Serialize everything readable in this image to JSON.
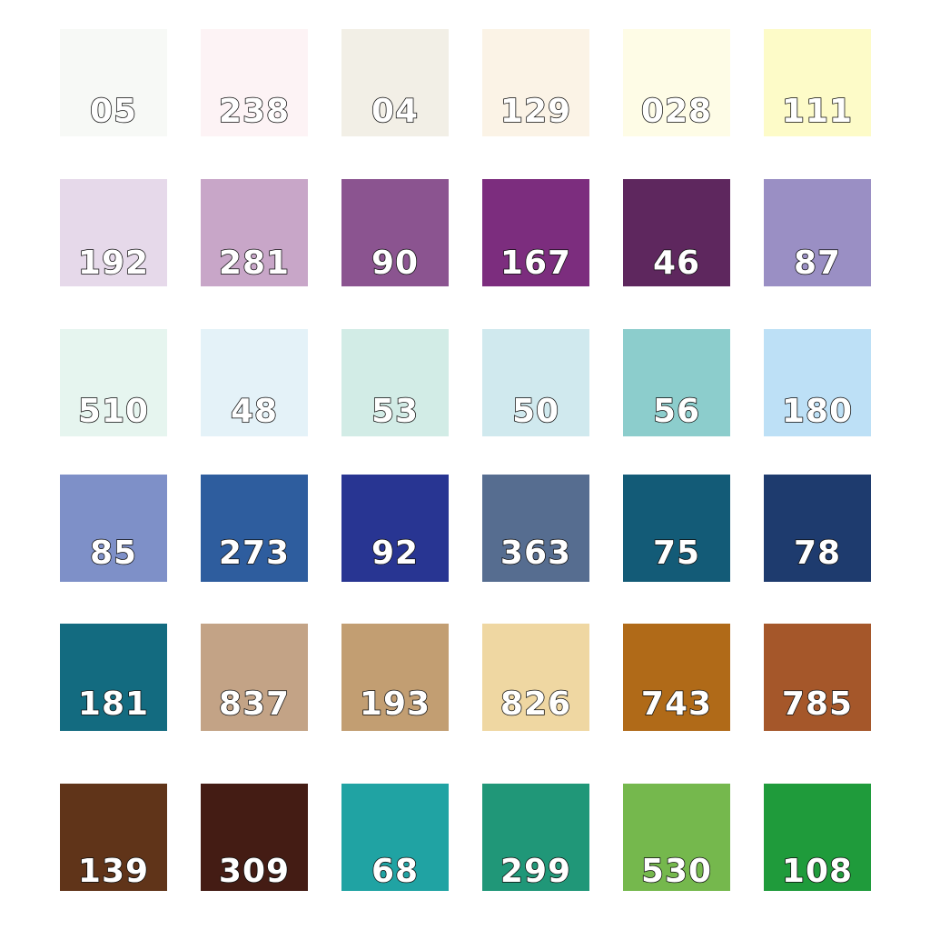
{
  "swatches": [
    [
      {
        "code": "05",
        "color": "#f7f9f6"
      },
      {
        "code": "238",
        "color": "#fdf3f5"
      },
      {
        "code": "04",
        "color": "#f2efe6"
      },
      {
        "code": "129",
        "color": "#fbf3e6"
      },
      {
        "code": "028",
        "color": "#fefce6"
      },
      {
        "code": "111",
        "color": "#fdfbc8"
      }
    ],
    [
      {
        "code": "192",
        "color": "#e6d9ea"
      },
      {
        "code": "281",
        "color": "#c8a6c8"
      },
      {
        "code": "90",
        "color": "#8b5490"
      },
      {
        "code": "167",
        "color": "#7c2d7e"
      },
      {
        "code": "46",
        "color": "#5e275e"
      },
      {
        "code": "87",
        "color": "#9a8fc4"
      }
    ],
    [
      {
        "code": "510",
        "color": "#e6f5ef"
      },
      {
        "code": "48",
        "color": "#e4f2f8"
      },
      {
        "code": "53",
        "color": "#d2ece6"
      },
      {
        "code": "50",
        "color": "#d0e9ee"
      },
      {
        "code": "56",
        "color": "#8ccdcc"
      },
      {
        "code": "180",
        "color": "#bde0f6"
      }
    ],
    [
      {
        "code": "85",
        "color": "#7e90c8"
      },
      {
        "code": "273",
        "color": "#2e5d9e"
      },
      {
        "code": "92",
        "color": "#283592"
      },
      {
        "code": "363",
        "color": "#566d90"
      },
      {
        "code": "75",
        "color": "#135b77"
      },
      {
        "code": "78",
        "color": "#1e3b6e"
      }
    ],
    [
      {
        "code": "181",
        "color": "#136b80"
      },
      {
        "code": "837",
        "color": "#c3a386"
      },
      {
        "code": "193",
        "color": "#c29e72"
      },
      {
        "code": "826",
        "color": "#efd7a2"
      },
      {
        "code": "743",
        "color": "#b06a18"
      },
      {
        "code": "785",
        "color": "#a5572a"
      }
    ],
    [
      {
        "code": "139",
        "color": "#603419"
      },
      {
        "code": "309",
        "color": "#441c14"
      },
      {
        "code": "68",
        "color": "#20a3a3"
      },
      {
        "code": "299",
        "color": "#209778"
      },
      {
        "code": "530",
        "color": "#75b84d"
      },
      {
        "code": "108",
        "color": "#1f9b3b"
      }
    ]
  ]
}
